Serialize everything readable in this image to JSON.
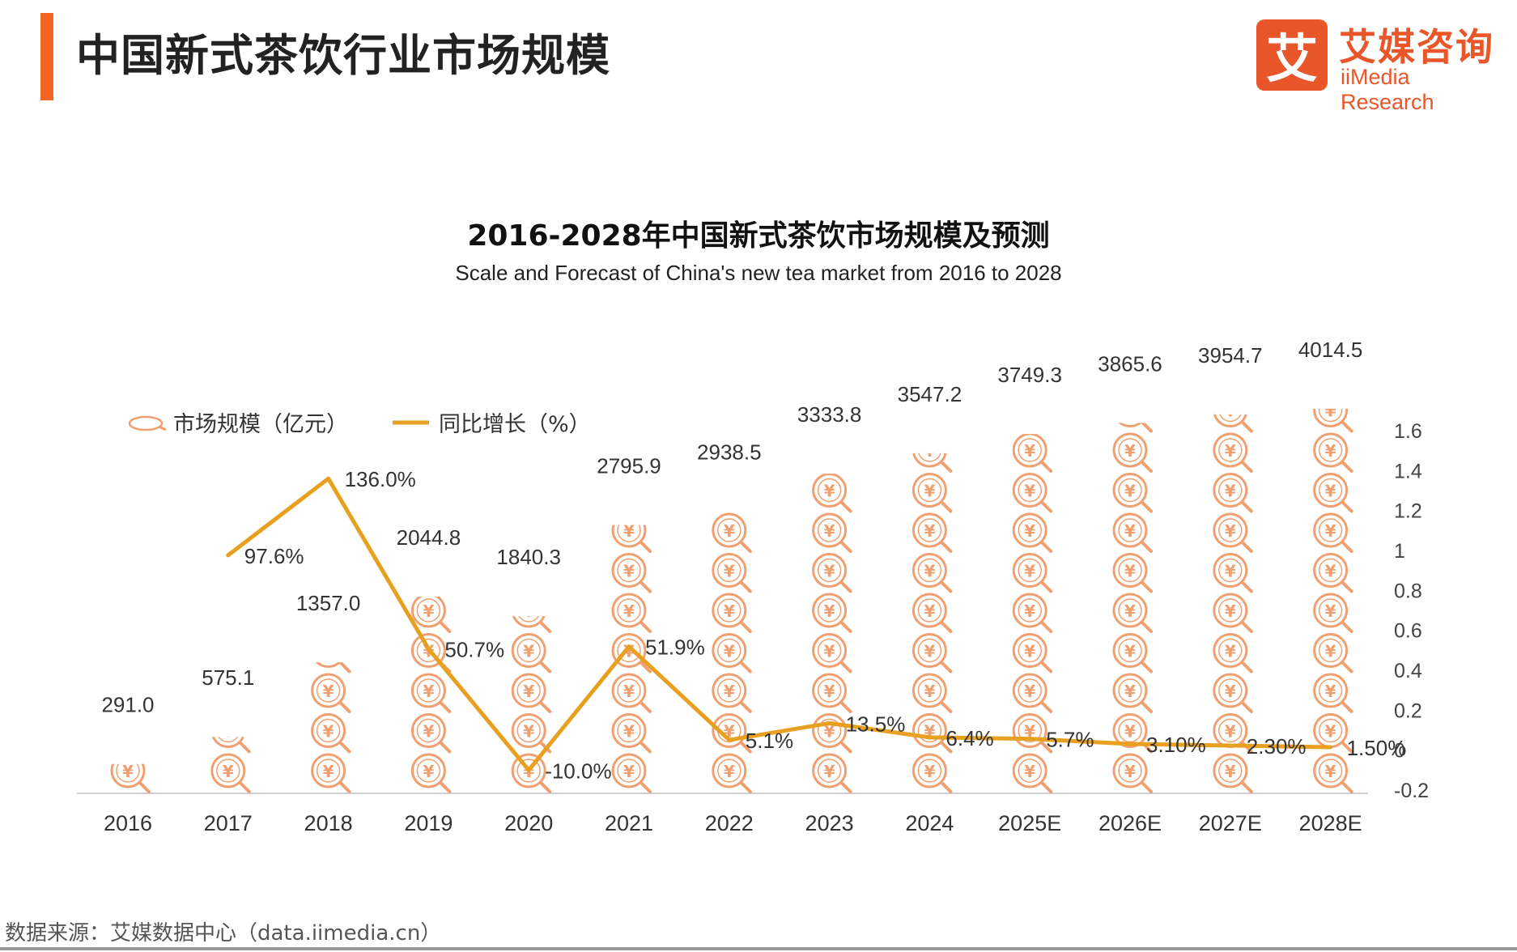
{
  "header": {
    "title": "中国新式茶饮行业市场规模",
    "accent_color": "#f26522"
  },
  "logo": {
    "mark_char": "艾",
    "name_cn": "艾媒咨询",
    "name_en": "iiMedia Research",
    "color": "#e8562a"
  },
  "chart_data": {
    "type": "bar",
    "title": "2016-2028年中国新式茶饮市场规模及预测",
    "subtitle": "Scale and Forecast of China's new tea market from 2016 to 2028",
    "categories": [
      "2016",
      "2017",
      "2018",
      "2019",
      "2020",
      "2021",
      "2022",
      "2023",
      "2024",
      "2025E",
      "2026E",
      "2027E",
      "2028E"
    ],
    "series": [
      {
        "name": "市场规模（亿元）",
        "type": "pictorial-bar",
        "icon": "money-search-icon",
        "color": "#f0a070",
        "values": [
          291.0,
          575.1,
          1357.0,
          2044.8,
          1840.3,
          2795.9,
          2938.5,
          3333.8,
          3547.2,
          3749.3,
          3865.6,
          3954.7,
          4014.5
        ],
        "labels": [
          "291.0",
          "575.1",
          "1357.0",
          "2044.8",
          "1840.3",
          "2795.9",
          "2938.5",
          "3333.8",
          "3547.2",
          "3749.3",
          "3865.6",
          "3954.7",
          "4014.5"
        ]
      },
      {
        "name": "同比增长（%）",
        "type": "line",
        "axis": "right",
        "color": "#e8a020",
        "values": [
          null,
          0.976,
          1.36,
          0.507,
          -0.1,
          0.519,
          0.051,
          0.135,
          0.064,
          0.057,
          0.031,
          0.023,
          0.015
        ],
        "labels": [
          "",
          "97.6%",
          "136.0%",
          "50.7%",
          "-10.0%",
          "51.9%",
          "5.1%",
          "13.5%",
          "6.4%",
          "5.7%",
          "3.10%",
          "2.30%",
          "1.50%"
        ]
      }
    ],
    "y_right": {
      "ylim": [
        -0.2,
        1.6
      ],
      "ticks": [
        "1.6",
        "1.4",
        "1.2",
        "1",
        "0.8",
        "0.6",
        "0.4",
        "0.2",
        "0",
        "-0.2"
      ]
    },
    "legend_position": "top-left",
    "grid": false
  },
  "footer": {
    "source": "数据来源：艾媒数据中心（data.iimedia.cn）"
  }
}
